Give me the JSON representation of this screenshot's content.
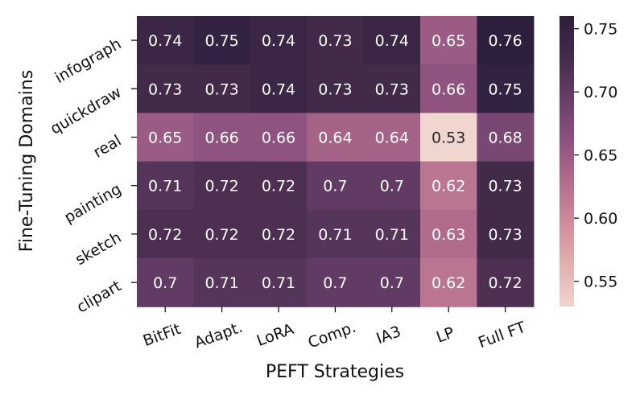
{
  "chart_data": {
    "type": "heatmap",
    "xlabel": "PEFT Strategies",
    "ylabel": "Fine-Tuning Domains",
    "x_categories": [
      "BitFit",
      "Adapt.",
      "LoRA",
      "Comp.",
      "IA3",
      "LP",
      "Full FT"
    ],
    "y_categories": [
      "infograph",
      "quickdraw",
      "real",
      "painting",
      "sketch",
      "clipart"
    ],
    "values": [
      [
        0.74,
        0.75,
        0.74,
        0.73,
        0.74,
        0.65,
        0.76
      ],
      [
        0.73,
        0.73,
        0.74,
        0.73,
        0.73,
        0.66,
        0.75
      ],
      [
        0.65,
        0.66,
        0.66,
        0.64,
        0.64,
        0.53,
        0.68
      ],
      [
        0.71,
        0.72,
        0.72,
        0.7,
        0.7,
        0.62,
        0.73
      ],
      [
        0.72,
        0.72,
        0.72,
        0.71,
        0.71,
        0.63,
        0.73
      ],
      [
        0.7,
        0.71,
        0.71,
        0.7,
        0.7,
        0.62,
        0.72
      ]
    ],
    "cell_labels": [
      [
        "0.74",
        "0.75",
        "0.74",
        "0.73",
        "0.74",
        "0.65",
        "0.76"
      ],
      [
        "0.73",
        "0.73",
        "0.74",
        "0.73",
        "0.73",
        "0.66",
        "0.75"
      ],
      [
        "0.65",
        "0.66",
        "0.66",
        "0.64",
        "0.64",
        "0.53",
        "0.68"
      ],
      [
        "0.71",
        "0.72",
        "0.72",
        "0.7",
        "0.7",
        "0.62",
        "0.73"
      ],
      [
        "0.72",
        "0.72",
        "0.72",
        "0.71",
        "0.71",
        "0.63",
        "0.73"
      ],
      [
        "0.7",
        "0.71",
        "0.71",
        "0.7",
        "0.7",
        "0.62",
        "0.72"
      ]
    ],
    "colorbar": {
      "vmin": 0.53,
      "vmax": 0.76,
      "ticks": [
        0.55,
        0.6,
        0.65,
        0.7,
        0.75
      ],
      "tick_labels": [
        "0.55",
        "0.60",
        "0.65",
        "0.70",
        "0.75"
      ]
    },
    "colormap": [
      "#f0d6cf",
      "#e2b0ad",
      "#cf8d9b",
      "#b26c8e",
      "#8d527e",
      "#673e69",
      "#442b4a",
      "#2d1e3e"
    ]
  }
}
